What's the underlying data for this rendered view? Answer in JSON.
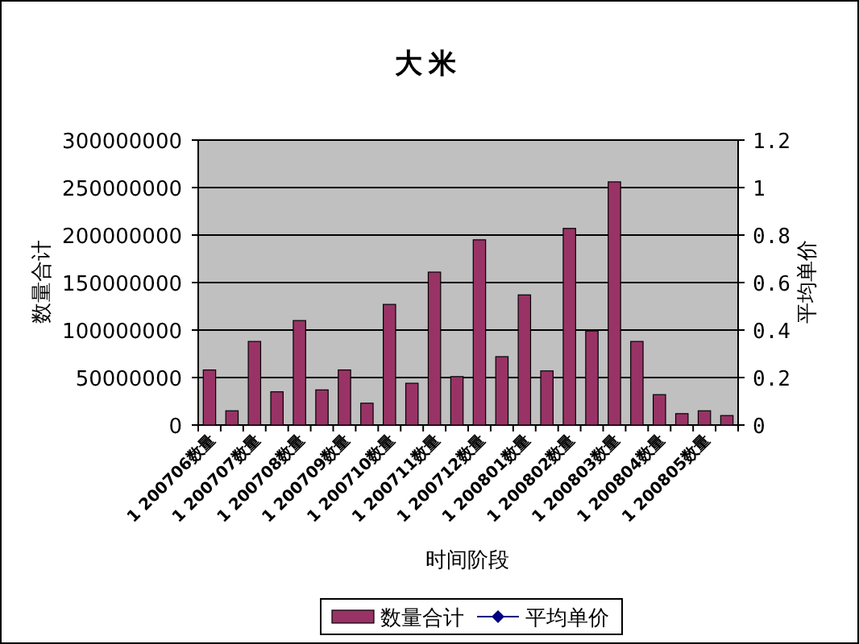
{
  "chart_data": {
    "type": "bar",
    "title": "大米",
    "xlabel": "时间阶段",
    "ylabel": "数量合计",
    "y2label": "平均单价",
    "categories": [
      "1 200706数量",
      null,
      "1 200707数量",
      null,
      "1 200708数量",
      null,
      "1 200709数量",
      null,
      "1 200710数量",
      null,
      "1 200711数量",
      null,
      "1 200712数量",
      null,
      "1 200801数量",
      null,
      "1 200802数量",
      null,
      "1 200803数量",
      null,
      "1 200804数量",
      null,
      "1 200805数量",
      null
    ],
    "series": [
      {
        "name": "数量合计",
        "color": "#993366",
        "values": [
          58000000,
          15000000,
          88000000,
          35000000,
          110000000,
          37000000,
          58000000,
          23000000,
          127000000,
          44000000,
          161000000,
          51000000,
          195000000,
          72000000,
          137000000,
          57000000,
          207000000,
          99000000,
          256000000,
          88000000,
          32000000,
          12000000,
          15000000,
          10000000
        ]
      },
      {
        "name": "平均单价",
        "type": "line",
        "color": "#000080",
        "marker": "diamond",
        "values": [
          null,
          null,
          null,
          null,
          null,
          null,
          null,
          null,
          null,
          null,
          null,
          null,
          null,
          null,
          null,
          null,
          null,
          null,
          null,
          null,
          null,
          null,
          null,
          null
        ]
      }
    ],
    "ylim": [
      0,
      300000000
    ],
    "yticks": [
      0,
      50000000,
      100000000,
      150000000,
      200000000,
      250000000,
      300000000
    ],
    "y2lim": [
      0,
      1.2
    ],
    "y2ticks": [
      0,
      0.2,
      0.4,
      0.6,
      0.8,
      1,
      1.2
    ],
    "grid": "y",
    "legend": "bottom"
  }
}
